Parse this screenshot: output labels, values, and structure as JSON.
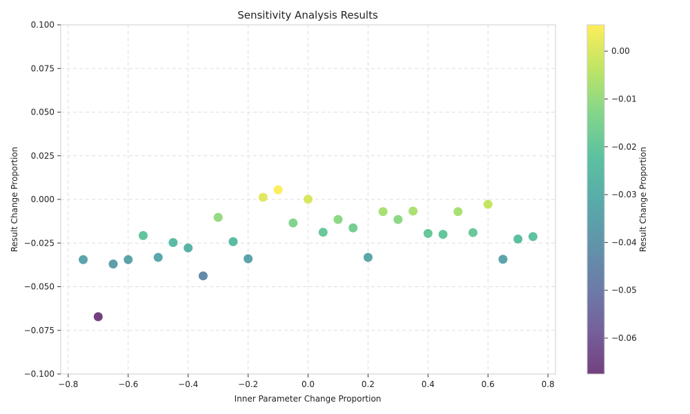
{
  "chart_data": {
    "type": "scatter",
    "title": "Sensitivity Analysis Results",
    "xlabel": "Inner Parameter Change Proportion",
    "ylabel": "Result Change Proportion",
    "xlim": [
      -0.825,
      0.825
    ],
    "ylim": [
      -0.1,
      0.1
    ],
    "xticks": [
      -0.8,
      -0.6,
      -0.4,
      -0.2,
      0.0,
      0.2,
      0.4,
      0.6,
      0.8
    ],
    "xtick_labels": [
      "−0.8",
      "−0.6",
      "−0.4",
      "−0.2",
      "0.0",
      "0.2",
      "0.4",
      "0.6",
      "0.8"
    ],
    "yticks": [
      -0.1,
      -0.075,
      -0.05,
      -0.025,
      0.0,
      0.025,
      0.05,
      0.075,
      0.1
    ],
    "ytick_labels": [
      "−0.100",
      "−0.075",
      "−0.050",
      "−0.025",
      "0.000",
      "0.025",
      "0.050",
      "0.075",
      "0.100"
    ],
    "grid": true,
    "colormap": "viridis",
    "colorbar": {
      "label": "Result Change Proportion",
      "range": [
        -0.0675,
        0.0055
      ],
      "ticks": [
        0.0,
        -0.01,
        -0.02,
        -0.03,
        -0.04,
        -0.05,
        -0.06
      ],
      "tick_labels": [
        "0.00",
        "−0.01",
        "−0.02",
        "−0.03",
        "−0.04",
        "−0.05",
        "−0.06"
      ]
    },
    "points": [
      {
        "x": -0.75,
        "y": -0.0345
      },
      {
        "x": -0.7,
        "y": -0.0672
      },
      {
        "x": -0.65,
        "y": -0.037
      },
      {
        "x": -0.6,
        "y": -0.0345
      },
      {
        "x": -0.55,
        "y": -0.0207
      },
      {
        "x": -0.5,
        "y": -0.0332
      },
      {
        "x": -0.45,
        "y": -0.0247
      },
      {
        "x": -0.4,
        "y": -0.0278
      },
      {
        "x": -0.35,
        "y": -0.0438
      },
      {
        "x": -0.3,
        "y": -0.0103
      },
      {
        "x": -0.25,
        "y": -0.0242
      },
      {
        "x": -0.2,
        "y": -0.034
      },
      {
        "x": -0.15,
        "y": 0.0012
      },
      {
        "x": -0.1,
        "y": 0.0055
      },
      {
        "x": -0.05,
        "y": -0.0135
      },
      {
        "x": 0.0,
        "y": 0.0001
      },
      {
        "x": 0.05,
        "y": -0.0188
      },
      {
        "x": 0.1,
        "y": -0.0115
      },
      {
        "x": 0.15,
        "y": -0.0163
      },
      {
        "x": 0.2,
        "y": -0.0332
      },
      {
        "x": 0.25,
        "y": -0.007
      },
      {
        "x": 0.3,
        "y": -0.0115
      },
      {
        "x": 0.35,
        "y": -0.0067
      },
      {
        "x": 0.4,
        "y": -0.0195
      },
      {
        "x": 0.45,
        "y": -0.02
      },
      {
        "x": 0.5,
        "y": -0.007
      },
      {
        "x": 0.55,
        "y": -0.019
      },
      {
        "x": 0.6,
        "y": -0.0028
      },
      {
        "x": 0.65,
        "y": -0.0343
      },
      {
        "x": 0.7,
        "y": -0.0227
      },
      {
        "x": 0.75,
        "y": -0.0213
      }
    ]
  }
}
